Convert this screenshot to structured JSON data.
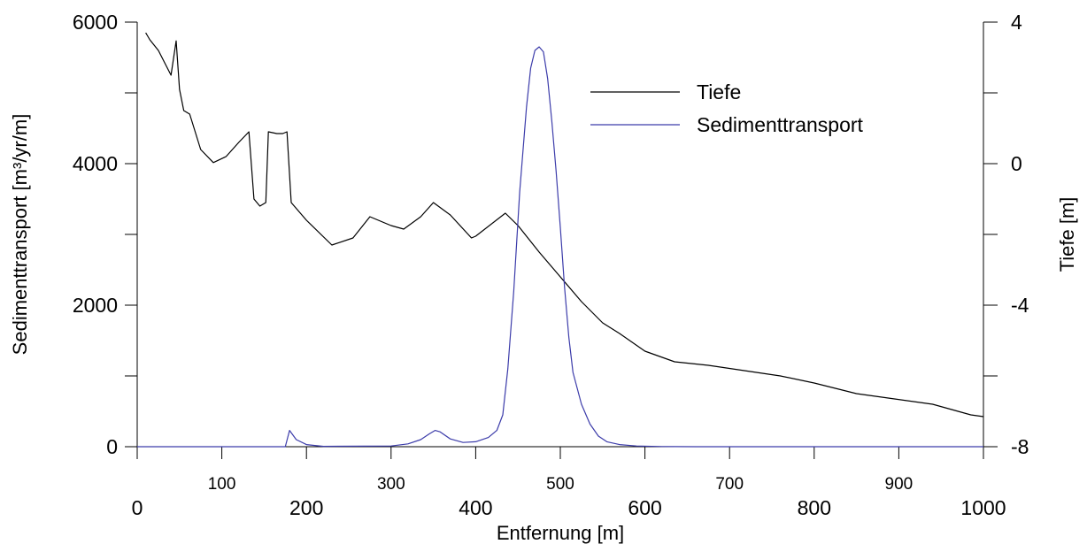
{
  "chart_data": {
    "type": "line",
    "title": "",
    "xlabel": "Entfernung [m]",
    "ylabel_left": "Sedimenttransport [m³/yr/m]",
    "ylabel_right": "Tiefe [m]",
    "xlim": [
      0,
      1000
    ],
    "ylim_left": [
      0,
      6000
    ],
    "ylim_right": [
      -8,
      4
    ],
    "x_ticks_major": [
      "0",
      "200",
      "400",
      "600",
      "800",
      "1000"
    ],
    "x_ticks_minor": [
      "100",
      "300",
      "500",
      "700",
      "900"
    ],
    "y_left_ticks": [
      "0",
      "2000",
      "4000",
      "6000"
    ],
    "y_right_ticks": [
      "-8",
      "-4",
      "0",
      "4"
    ],
    "grid": false,
    "legend_position": "top-right",
    "series": [
      {
        "name": "Tiefe",
        "axis": "right",
        "color": "#000000",
        "x": [
          10,
          15,
          25,
          40,
          46,
          50,
          55,
          62,
          75,
          90,
          105,
          120,
          132,
          138,
          145,
          152,
          155,
          165,
          172,
          177,
          182,
          200,
          230,
          255,
          275,
          300,
          315,
          335,
          350,
          370,
          395,
          400,
          435,
          450,
          475,
          500,
          525,
          550,
          570,
          600,
          635,
          675,
          760,
          800,
          850,
          895,
          940,
          985,
          1000
        ],
        "y": [
          3.7,
          3.5,
          3.2,
          2.5,
          3.47,
          2.1,
          1.5,
          1.4,
          0.4,
          0.03,
          0.2,
          0.6,
          0.9,
          -1.0,
          -1.2,
          -1.1,
          0.9,
          0.85,
          0.85,
          0.9,
          -1.1,
          -1.6,
          -2.3,
          -2.1,
          -1.5,
          -1.75,
          -1.85,
          -1.5,
          -1.1,
          -1.45,
          -2.1,
          -2.05,
          -1.4,
          -1.75,
          -2.5,
          -3.2,
          -3.9,
          -4.5,
          -4.8,
          -5.3,
          -5.6,
          -5.7,
          -6.0,
          -6.2,
          -6.5,
          -6.65,
          -6.8,
          -7.1,
          -7.15
        ]
      },
      {
        "name": "Sedimenttransport",
        "axis": "left",
        "color": "#3c3caa",
        "x": [
          0,
          175,
          180,
          188,
          200,
          220,
          300,
          320,
          335,
          345,
          352,
          358,
          370,
          385,
          400,
          415,
          425,
          432,
          438,
          445,
          452,
          460,
          465,
          470,
          475,
          480,
          485,
          490,
          495,
          500,
          505,
          510,
          515,
          525,
          535,
          545,
          555,
          570,
          590,
          620,
          660,
          1000
        ],
        "y": [
          0,
          0,
          230,
          100,
          30,
          5,
          10,
          40,
          100,
          180,
          230,
          210,
          110,
          60,
          70,
          130,
          230,
          450,
          1100,
          2200,
          3600,
          4800,
          5350,
          5600,
          5650,
          5580,
          5200,
          4600,
          3900,
          3100,
          2250,
          1550,
          1050,
          600,
          320,
          150,
          70,
          30,
          10,
          3,
          0,
          0
        ]
      }
    ]
  }
}
